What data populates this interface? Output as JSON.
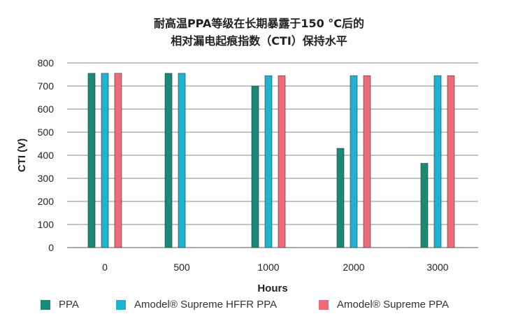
{
  "chart_data": {
    "type": "bar",
    "title_lines": [
      "耐高温PPA等级在长期暴露于150 °C后的",
      "相对漏电起痕指数（CTI）保持水平"
    ],
    "xlabel": "Hours",
    "ylabel": "CTI (V)",
    "ylim": [
      0,
      800
    ],
    "yticks": [
      0,
      100,
      200,
      300,
      400,
      500,
      600,
      700,
      800
    ],
    "grid": true,
    "legend_position": "bottom",
    "categories": [
      "0",
      "500",
      "1000",
      "2000",
      "3000"
    ],
    "series": [
      {
        "name": "PPA",
        "color": "#1a8a78",
        "values": [
          755,
          755,
          700,
          430,
          365
        ]
      },
      {
        "name": "Amodel® Supreme HFFR PPA",
        "color": "#1fb3cf",
        "values": [
          755,
          755,
          745,
          745,
          745
        ]
      },
      {
        "name": "Amodel® Supreme PPA",
        "color": "#ef6b78",
        "values": [
          755,
          null,
          745,
          745,
          745
        ]
      }
    ]
  }
}
